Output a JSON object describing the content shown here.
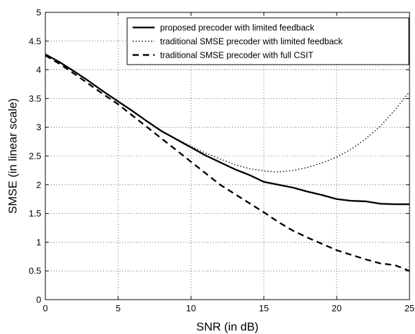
{
  "chart_data": {
    "type": "line",
    "title": "",
    "xlabel": "SNR (in dB)",
    "ylabel": "SMSE (in linear scale)",
    "xlim": [
      0,
      25
    ],
    "ylim": [
      0,
      5
    ],
    "xticks": [
      "0",
      "5",
      "10",
      "15",
      "20",
      "25"
    ],
    "yticks": [
      "0",
      "0.5",
      "1",
      "1.5",
      "2",
      "2.5",
      "3",
      "3.5",
      "4",
      "4.5",
      "5"
    ],
    "grid": true,
    "legend_position": "top-right",
    "series": [
      {
        "name": "proposed precoder with limited feedback",
        "style": "solid",
        "color": "#000000",
        "x": [
          0,
          1,
          2,
          3,
          4,
          5,
          6,
          7,
          8,
          9,
          10,
          11,
          12,
          13,
          14,
          15,
          16,
          17,
          18,
          19,
          20,
          21,
          22,
          23,
          24,
          25
        ],
        "y": [
          4.27,
          4.13,
          3.97,
          3.8,
          3.62,
          3.45,
          3.28,
          3.1,
          2.93,
          2.79,
          2.65,
          2.51,
          2.39,
          2.27,
          2.17,
          2.05,
          2.0,
          1.95,
          1.88,
          1.82,
          1.75,
          1.72,
          1.71,
          1.67,
          1.66,
          1.66
        ]
      },
      {
        "name": "traditional SMSE precoder with limited feedback",
        "style": "dotted",
        "color": "#000000",
        "x": [
          0,
          1,
          2,
          3,
          4,
          5,
          6,
          7,
          8,
          9,
          10,
          11,
          12,
          13,
          14,
          15,
          16,
          17,
          18,
          19,
          20,
          21,
          22,
          23,
          24,
          25
        ],
        "y": [
          4.27,
          4.13,
          3.97,
          3.8,
          3.62,
          3.45,
          3.27,
          3.1,
          2.93,
          2.8,
          2.67,
          2.55,
          2.45,
          2.35,
          2.28,
          2.24,
          2.22,
          2.25,
          2.3,
          2.38,
          2.48,
          2.62,
          2.8,
          3.02,
          3.3,
          3.62
        ]
      },
      {
        "name": "traditional SMSE precoder with full CSIT",
        "style": "dashed",
        "color": "#000000",
        "x": [
          0,
          1,
          2,
          3,
          4,
          5,
          6,
          7,
          8,
          9,
          10,
          11,
          12,
          13,
          14,
          15,
          16,
          17,
          18,
          19,
          20,
          21,
          22,
          23,
          24,
          25
        ],
        "y": [
          4.25,
          4.1,
          3.93,
          3.75,
          3.57,
          3.4,
          3.2,
          3.0,
          2.8,
          2.6,
          2.4,
          2.2,
          2.0,
          1.84,
          1.68,
          1.52,
          1.35,
          1.2,
          1.08,
          0.97,
          0.86,
          0.78,
          0.7,
          0.63,
          0.6,
          0.5
        ]
      }
    ]
  }
}
